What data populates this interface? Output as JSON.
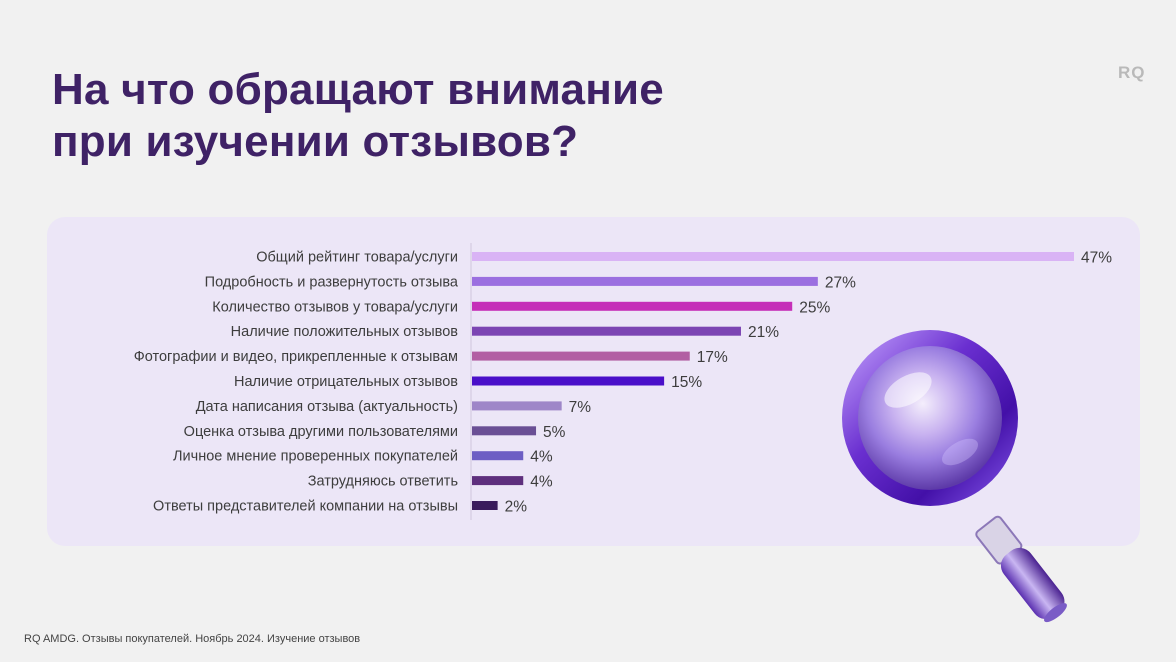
{
  "title_line1": "На что обращают внимание",
  "title_line2": "при изучении отзывов?",
  "logo": "RQ",
  "footer": "RQ AMDG. Отзывы покупателей. Ноябрь 2024. Изучение отзывов",
  "chart_data": {
    "type": "bar",
    "orientation": "horizontal",
    "title": "На что обращают внимание при изучении отзывов?",
    "unit": "%",
    "categories": [
      "Общий рейтинг товара/услуги",
      "Подробность и развернутость отзыва",
      "Количество отзывов у товара/услуги",
      "Наличие положительных отзывов",
      "Фотографии и видео, прикрепленные к отзывам",
      "Наличие отрицательных отзывов",
      "Дата написания отзыва (актуальность)",
      "Оценка отзыва другими пользователями",
      "Личное мнение проверенных покупателей",
      "Затрудняюсь ответить",
      "Ответы представителей компании на отзывы"
    ],
    "values": [
      47,
      27,
      25,
      21,
      17,
      15,
      7,
      5,
      4,
      4,
      2
    ],
    "value_labels": [
      "47%",
      "27%",
      "25%",
      "21%",
      "17%",
      "15%",
      "7%",
      "5%",
      "4%",
      "4%",
      "2%"
    ],
    "colors": [
      "#d9b3f5",
      "#9b6fe0",
      "#c52fb8",
      "#7c45b3",
      "#b25fa3",
      "#4a0fc9",
      "#9e86c8",
      "#6a4f95",
      "#6d5ec4",
      "#5e2f7d",
      "#3a1c5c"
    ]
  }
}
